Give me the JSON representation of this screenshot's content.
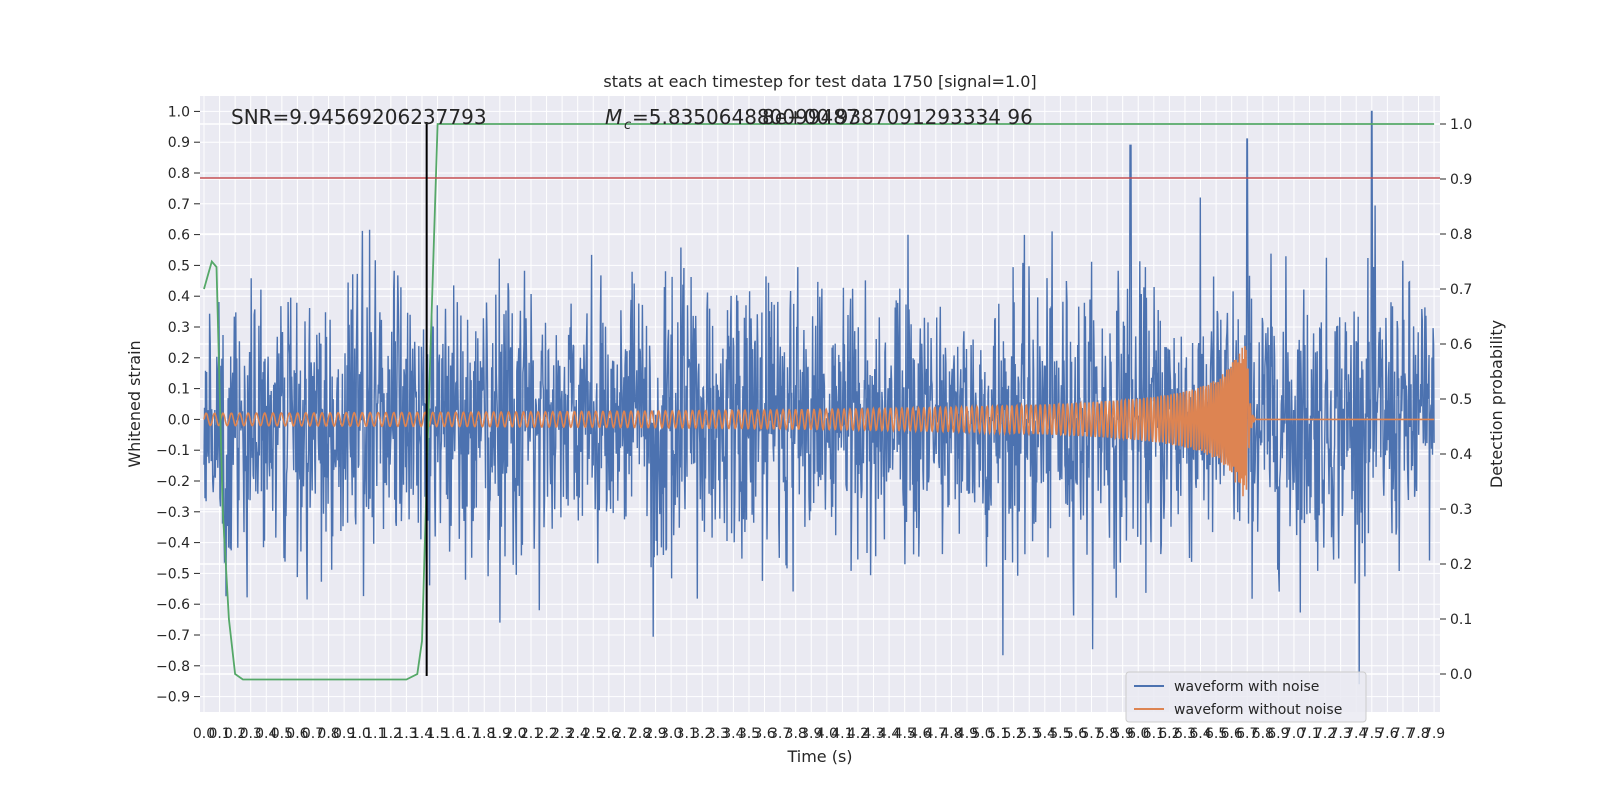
{
  "chart_data": {
    "type": "line",
    "title": "stats at each timestep for test data 1750 [signal=1.0]",
    "xlabel": "Time (s)",
    "ylabel": "Whitened strain",
    "y2label": "Detection probability",
    "xlim": [
      0.0,
      7.9
    ],
    "ylim": [
      -0.95,
      1.05
    ],
    "y2lim": [
      -0.05,
      1.03
    ],
    "x_ticks": [
      "0.0",
      "0.1",
      "0.2",
      "0.3",
      "0.4",
      "0.5",
      "0.6",
      "0.7",
      "0.8",
      "0.9",
      "1.0",
      "1.1",
      "1.2",
      "1.3",
      "1.4",
      "1.5",
      "1.6",
      "1.7",
      "1.8",
      "1.9",
      "2.0",
      "2.1",
      "2.2",
      "2.3",
      "2.4",
      "2.5",
      "2.6",
      "2.7",
      "2.8",
      "2.9",
      "3.0",
      "3.1",
      "3.2",
      "3.3",
      "3.4",
      "3.5",
      "3.6",
      "3.7",
      "3.8",
      "3.9",
      "4.0",
      "4.1",
      "4.2",
      "4.3",
      "4.4",
      "4.5",
      "4.6",
      "4.7",
      "4.8",
      "4.9",
      "5.0",
      "5.1",
      "5.2",
      "5.3",
      "5.4",
      "5.5",
      "5.6",
      "5.7",
      "5.8",
      "5.9",
      "6.0",
      "6.1",
      "6.2",
      "6.3",
      "6.4",
      "6.5",
      "6.6",
      "6.7",
      "6.8",
      "6.9",
      "7.0",
      "7.1",
      "7.2",
      "7.3",
      "7.4",
      "7.5",
      "7.6",
      "7.7",
      "7.8",
      "7.9"
    ],
    "y_ticks": [
      "1.0",
      "0.9",
      "0.8",
      "0.7",
      "0.6",
      "0.5",
      "0.4",
      "0.3",
      "0.2",
      "0.1",
      "0.0",
      "−0.1",
      "−0.2",
      "−0.3",
      "−0.4",
      "−0.5",
      "−0.6",
      "−0.7",
      "−0.8",
      "−0.9"
    ],
    "y2_ticks": [
      "1.0",
      "0.9",
      "0.8",
      "0.7",
      "0.6",
      "0.5",
      "0.4",
      "0.3",
      "0.2",
      "0.1",
      "0.0"
    ],
    "annotations": {
      "snr": "SNR=9.94569206237793",
      "mc": "=5.835064880099487",
      "mc_symbol": "M",
      "mc_sub": "c",
      "overlap": "8e+00 9387091293334 96"
    },
    "series": [
      {
        "name": "waveform with noise",
        "color": "#4c72b0",
        "description_values": "dense noise envelope approx ±0.5 around 0",
        "peaks": [
          {
            "x": 5.95,
            "y": 0.89
          },
          {
            "x": 6.7,
            "y": 0.91
          },
          {
            "x": 7.5,
            "y": 1.0
          }
        ],
        "min": -0.86
      },
      {
        "name": "waveform without noise",
        "color": "#dd8452",
        "amplitude_start": 0.02,
        "amplitude_peak": 0.25,
        "merger_time": 6.7
      },
      {
        "name": "detection probability",
        "color": "#55a868",
        "x": [
          0.0,
          0.02,
          0.05,
          0.08,
          0.12,
          0.16,
          0.2,
          0.25,
          0.3,
          1.3,
          1.37,
          1.4,
          1.45,
          1.5,
          7.9
        ],
        "y": [
          0.7,
          0.72,
          0.75,
          0.74,
          0.3,
          0.1,
          0.0,
          -0.01,
          -0.01,
          -0.01,
          0.0,
          0.06,
          0.55,
          1.0,
          1.0
        ]
      }
    ],
    "threshold_line": {
      "y": 0.815,
      "color": "#c44e52"
    },
    "vertical_line": {
      "x": 1.43,
      "color": "#000000"
    },
    "legend_position": "lower-right",
    "background": "#eaeaf2",
    "grid": true
  }
}
